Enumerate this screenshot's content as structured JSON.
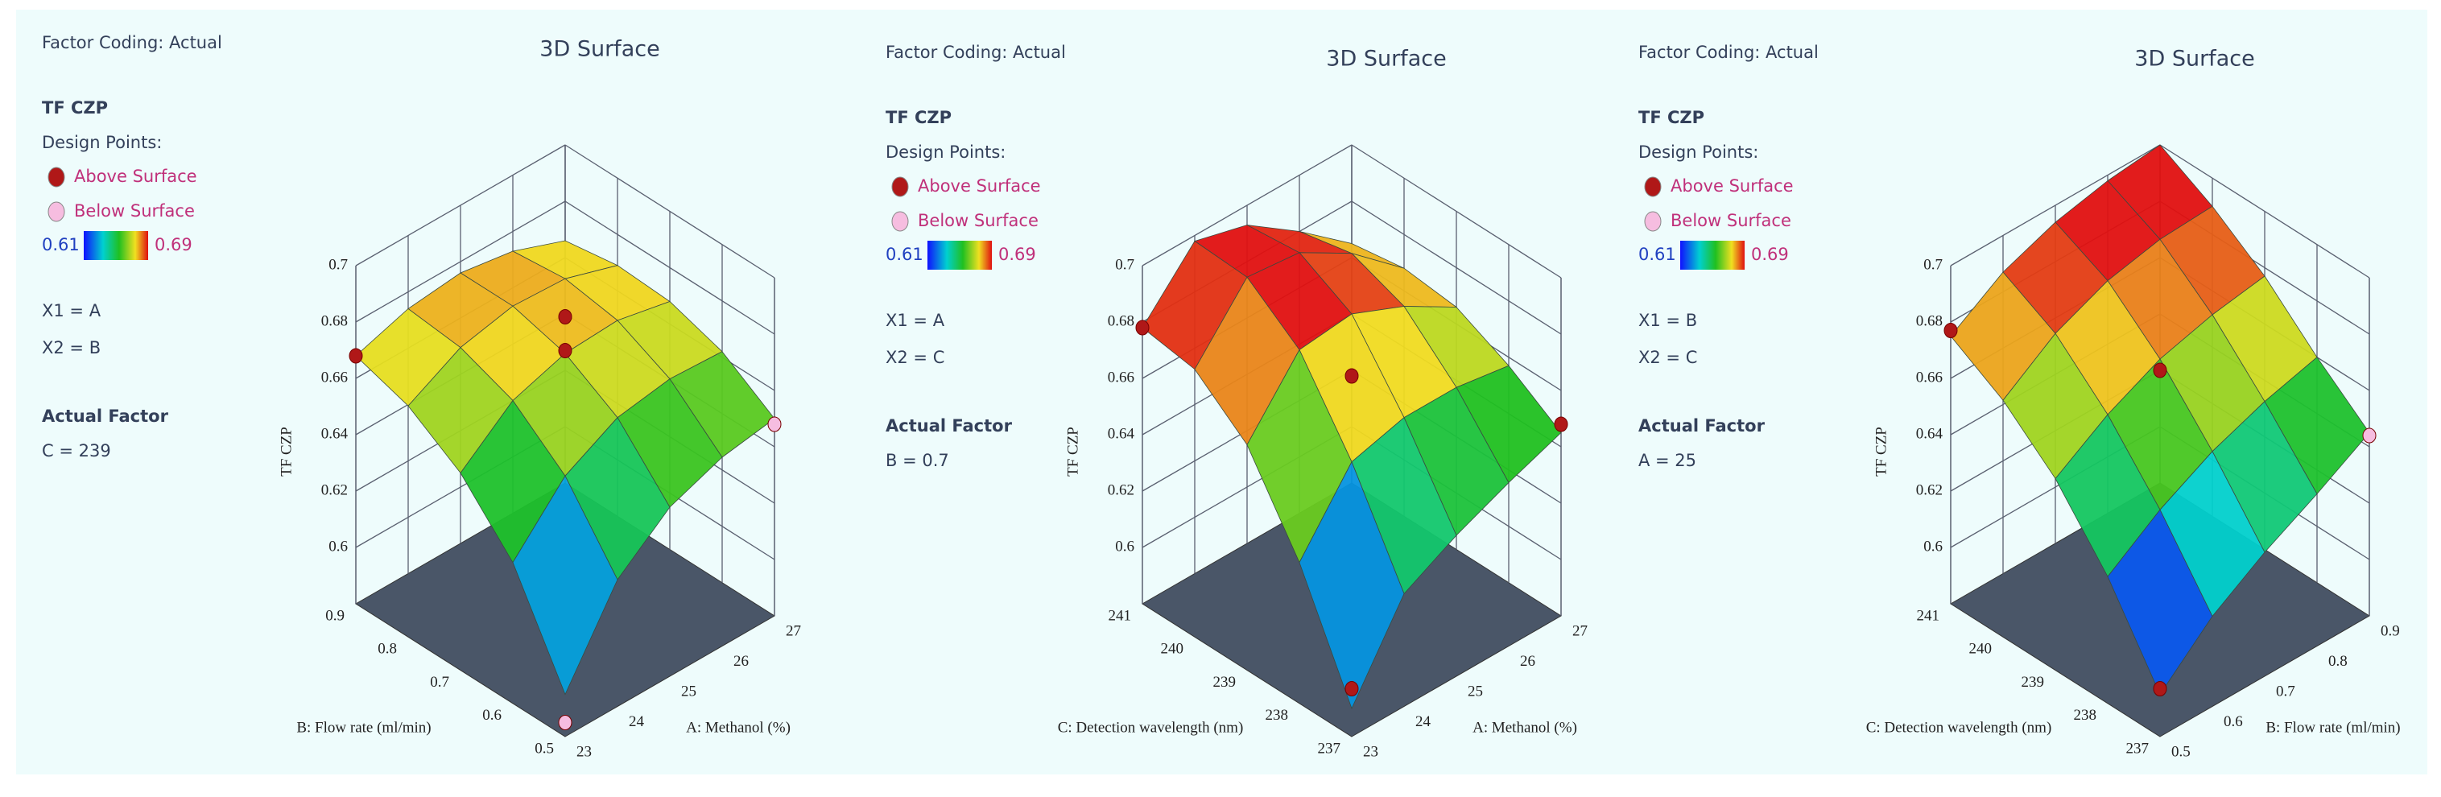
{
  "chart_data": [
    {
      "type": "surface3d",
      "title": "3D Surface",
      "factor_coding": "Factor Coding: Actual",
      "response": "TF CZP",
      "design_points_label": "Design Points:",
      "colorbar": {
        "min": 0.61,
        "max": 0.69
      },
      "x1_code": "X1 = A",
      "x2_code": "X2 = B",
      "actual_factor_label": "Actual Factor",
      "actual_factor": "C = 239",
      "x1_label": "A: Methanol (%)",
      "x2_label": "B: Flow rate (ml/min)",
      "z_label": "TF CZP",
      "x1lim": [
        23,
        27
      ],
      "x2lim": [
        0.5,
        0.9
      ],
      "zlim": [
        0.58,
        0.7
      ],
      "x1ticks": [
        23,
        24,
        25,
        26,
        27
      ],
      "x2ticks": [
        0.5,
        0.6,
        0.7,
        0.8,
        0.9
      ],
      "zticks": [
        0.6,
        0.62,
        0.64,
        0.66,
        0.68,
        0.7
      ],
      "z": [
        [
          0.595,
          0.63,
          0.65,
          0.662,
          0.668
        ],
        [
          0.625,
          0.65,
          0.665,
          0.672,
          0.674
        ],
        [
          0.64,
          0.66,
          0.671,
          0.676,
          0.676
        ],
        [
          0.647,
          0.663,
          0.672,
          0.675,
          0.673
        ],
        [
          0.65,
          0.662,
          0.668,
          0.669,
          0.666
        ]
      ],
      "series": [
        {
          "name": "Above Surface",
          "color": "#b01818",
          "x1": [
            23,
            25,
            25
          ],
          "x2": [
            0.9,
            0.7,
            0.7
          ],
          "z": [
            0.668,
            0.684,
            0.672
          ]
        },
        {
          "name": "Below Surface",
          "color": "#f6bde0",
          "x1": [
            27,
            23
          ],
          "x2": [
            0.5,
            0.5
          ],
          "z": [
            0.648,
            0.585
          ]
        }
      ]
    },
    {
      "type": "surface3d",
      "title": "3D Surface",
      "factor_coding": "Factor Coding: Actual",
      "response": "TF CZP",
      "design_points_label": "Design Points:",
      "colorbar": {
        "min": 0.61,
        "max": 0.69
      },
      "x1_code": "X1 = A",
      "x2_code": "X2 = C",
      "actual_factor_label": "Actual Factor",
      "actual_factor": "B = 0.7",
      "x1_label": "A: Methanol (%)",
      "x2_label": "C: Detection wavelength (nm)",
      "z_label": "TF CZP",
      "x1lim": [
        23,
        27
      ],
      "x2lim": [
        237,
        241
      ],
      "zlim": [
        0.58,
        0.7
      ],
      "x1ticks": [
        23,
        24,
        25,
        26,
        27
      ],
      "x2ticks": [
        237,
        238,
        239,
        240,
        241
      ],
      "zticks": [
        0.6,
        0.62,
        0.64,
        0.66,
        0.68,
        0.7
      ],
      "z": [
        [
          0.59,
          0.63,
          0.66,
          0.675,
          0.678
        ],
        [
          0.62,
          0.655,
          0.683,
          0.697,
          0.698
        ],
        [
          0.63,
          0.66,
          0.685,
          0.695,
          0.693
        ],
        [
          0.638,
          0.66,
          0.677,
          0.684,
          0.68
        ],
        [
          0.645,
          0.657,
          0.666,
          0.668,
          0.665
        ]
      ],
      "series": [
        {
          "name": "Above Surface",
          "color": "#b01818",
          "x1": [
            23,
            25,
            27,
            23
          ],
          "x2": [
            241,
            239,
            237,
            237
          ],
          "z": [
            0.678,
            0.663,
            0.648,
            0.597
          ]
        },
        {
          "name": "Below Surface",
          "color": "#f6bde0",
          "x1": [],
          "x2": [],
          "z": []
        }
      ]
    },
    {
      "type": "surface3d",
      "title": "3D Surface",
      "factor_coding": "Factor Coding: Actual",
      "response": "TF CZP",
      "design_points_label": "Design Points:",
      "colorbar": {
        "min": 0.61,
        "max": 0.69
      },
      "x1_code": "X1 = B",
      "x2_code": "X2 = C",
      "actual_factor_label": "Actual Factor",
      "actual_factor": "A = 25",
      "x1_label": "B: Flow rate (ml/min)",
      "x2_label": "C: Detection wavelength (nm)",
      "z_label": "TF CZP",
      "x1lim": [
        0.5,
        0.9
      ],
      "x2lim": [
        237,
        241
      ],
      "zlim": [
        0.58,
        0.7
      ],
      "x1ticks": [
        0.5,
        0.6,
        0.7,
        0.8,
        0.9
      ],
      "x2ticks": [
        237,
        238,
        239,
        240,
        241
      ],
      "zticks": [
        0.6,
        0.62,
        0.64,
        0.66,
        0.68,
        0.7
      ],
      "z": [
        [
          0.595,
          0.625,
          0.648,
          0.664,
          0.675
        ],
        [
          0.612,
          0.638,
          0.66,
          0.677,
          0.687
        ],
        [
          0.624,
          0.648,
          0.669,
          0.685,
          0.694
        ],
        [
          0.634,
          0.655,
          0.674,
          0.689,
          0.698
        ],
        [
          0.645,
          0.66,
          0.677,
          0.69,
          0.7
        ]
      ],
      "series": [
        {
          "name": "Above Surface",
          "color": "#b01818",
          "x1": [
            0.5,
            0.7,
            0.5
          ],
          "x2": [
            241,
            239,
            237
          ],
          "z": [
            0.677,
            0.665,
            0.597
          ]
        },
        {
          "name": "Below Surface",
          "color": "#f6bde0",
          "x1": [
            0.9
          ],
          "x2": [
            237
          ],
          "z": [
            0.644
          ]
        }
      ]
    }
  ]
}
